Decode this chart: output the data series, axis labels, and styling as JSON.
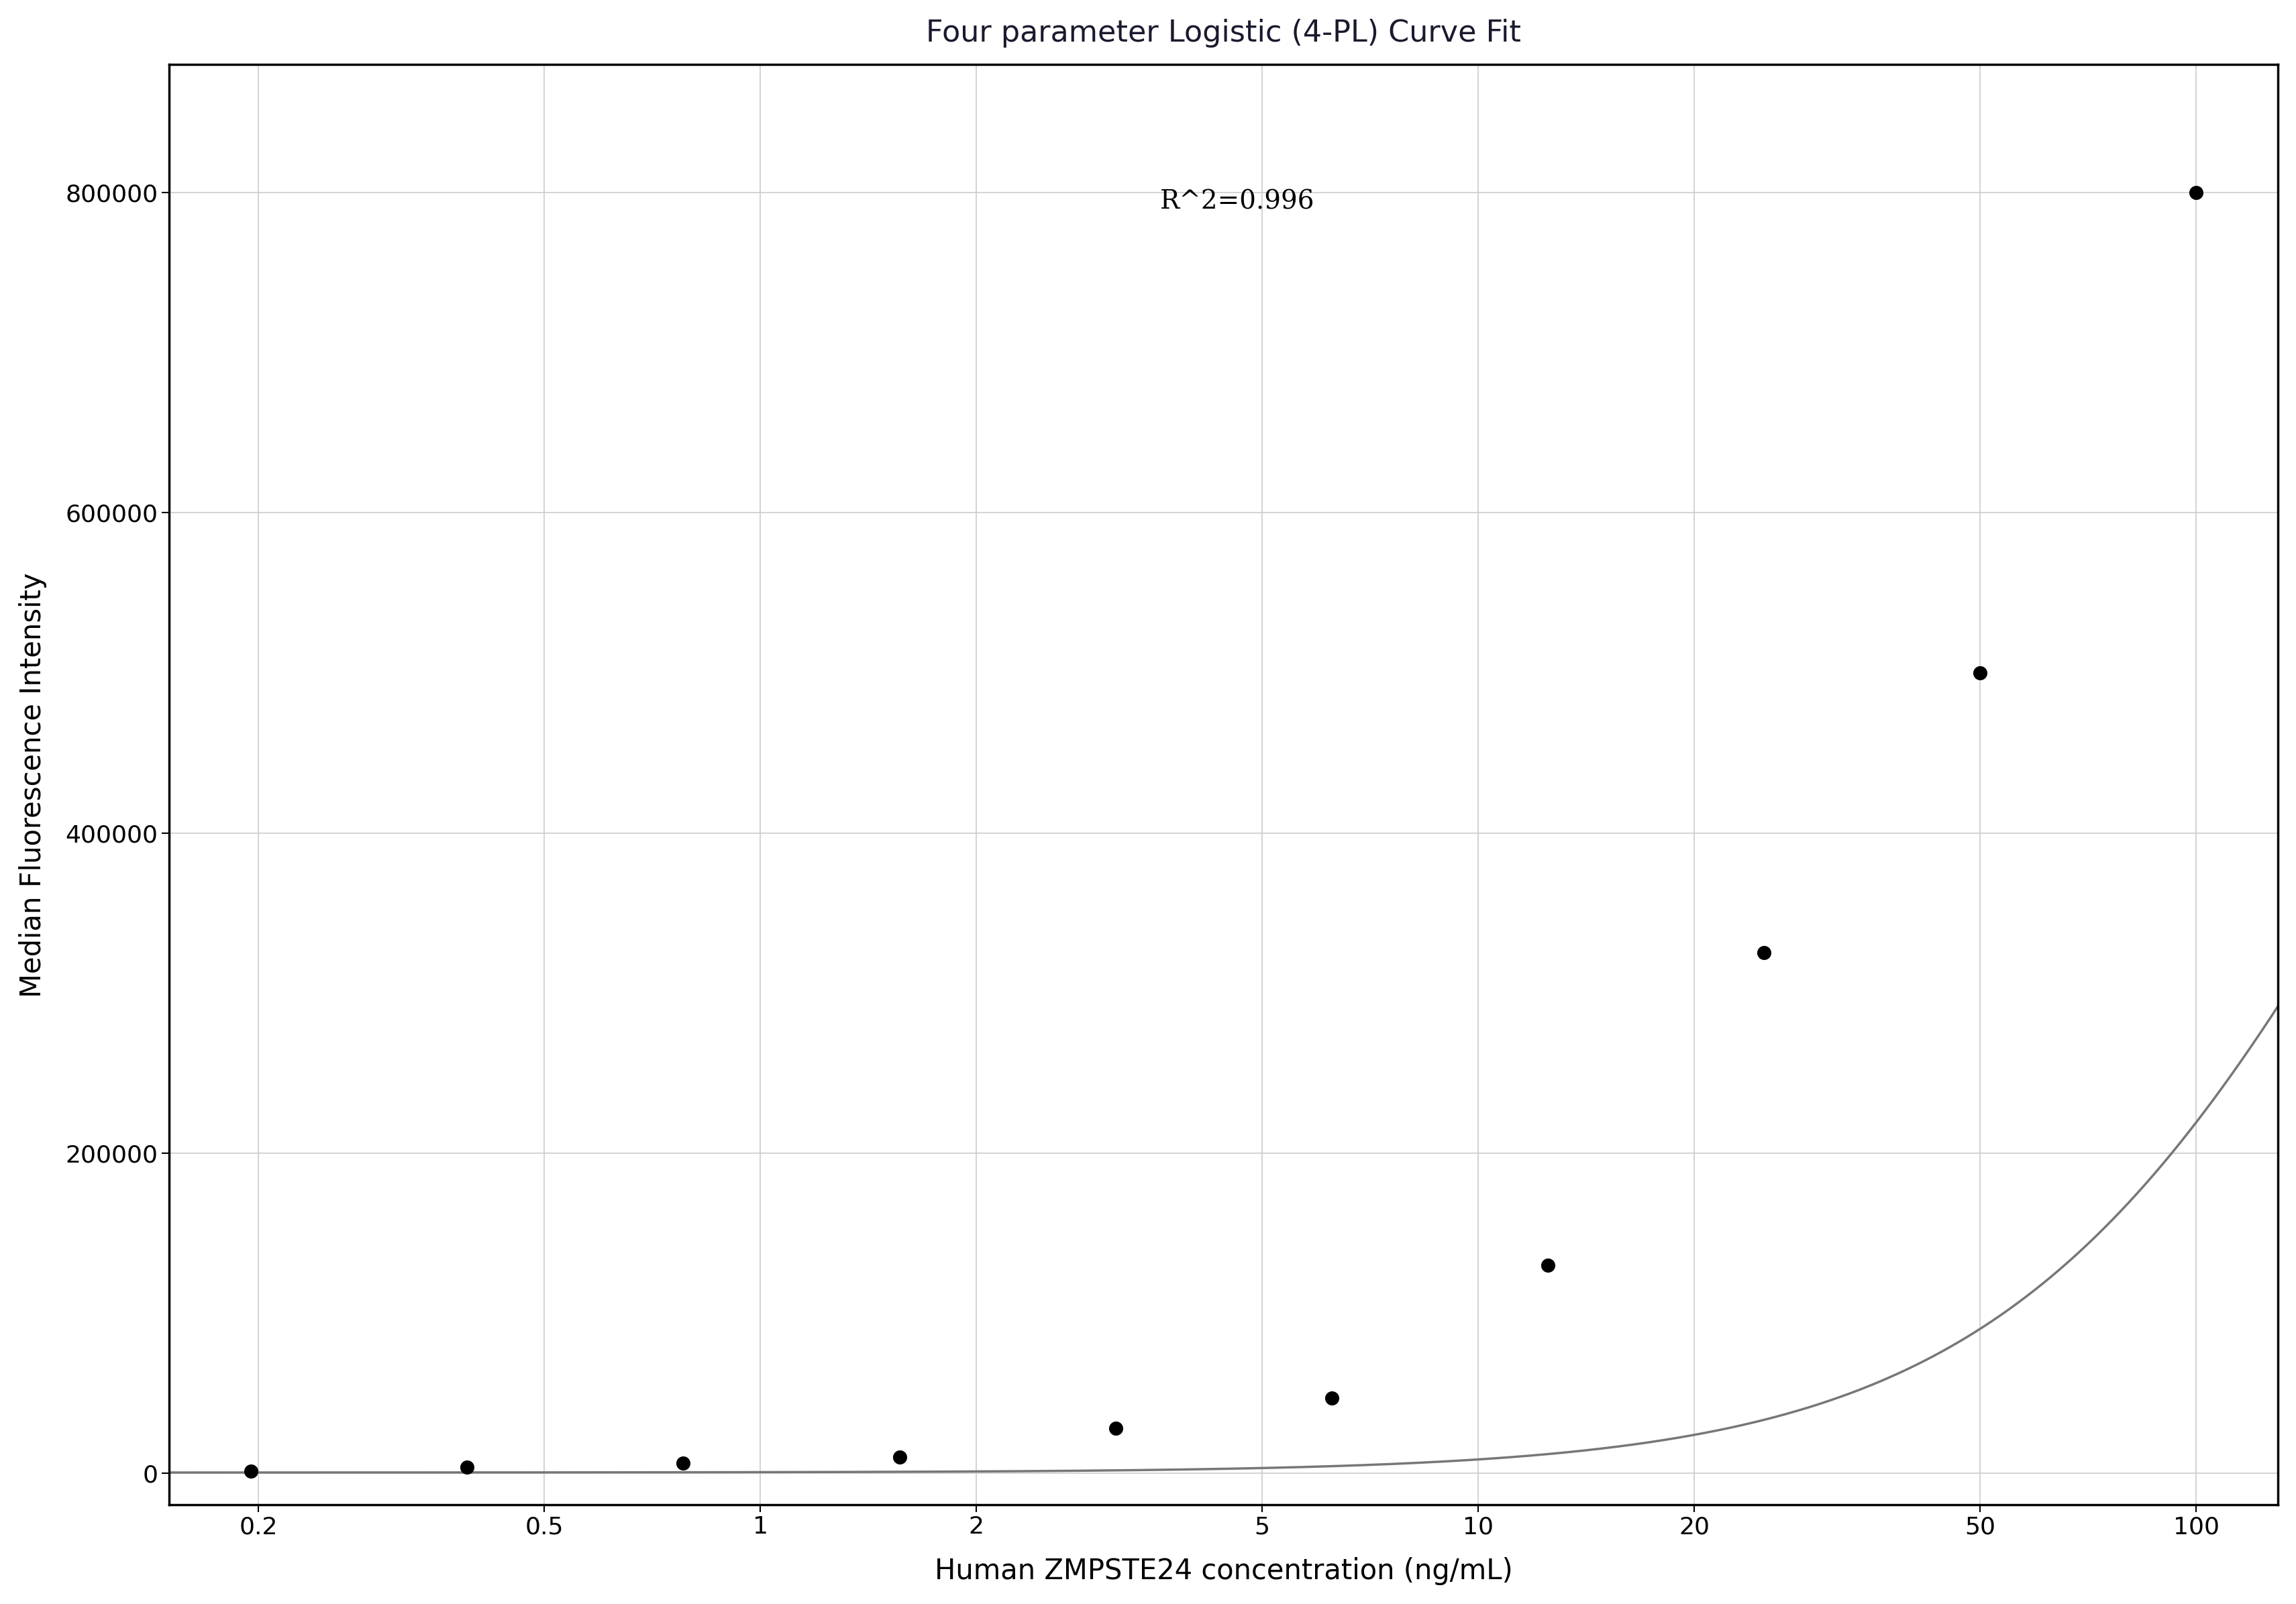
{
  "title": "Four parameter Logistic (4-PL) Curve Fit",
  "xlabel": "Human ZMPSTE24 concentration (ng/mL)",
  "ylabel": "Median Fluorescence Intensity",
  "r_squared": "R^2=0.996",
  "x_data": [
    0.195,
    0.39,
    0.781,
    1.563,
    3.125,
    6.25,
    12.5,
    25,
    50,
    100
  ],
  "y_data": [
    1200,
    3500,
    6000,
    10000,
    28000,
    47000,
    130000,
    325000,
    500000,
    800000
  ],
  "x_min": 0.15,
  "x_max": 130,
  "y_min": -20000,
  "y_max": 880000,
  "y_ticks": [
    0,
    200000,
    400000,
    600000,
    800000
  ],
  "x_ticks": [
    0.2,
    0.5,
    1,
    2,
    5,
    10,
    20,
    50,
    100
  ],
  "4pl_A": 300,
  "4pl_B": 1.55,
  "4pl_C": 200,
  "4pl_D": 860000,
  "background_color": "#ffffff",
  "plot_bg_color": "#ffffff",
  "grid_color": "#cccccc",
  "curve_color": "#777777",
  "dot_color": "#000000",
  "title_color": "#1a1a2e",
  "label_color": "#000000",
  "title_fontsize": 32,
  "label_fontsize": 30,
  "tick_fontsize": 26,
  "annotation_fontsize": 28
}
